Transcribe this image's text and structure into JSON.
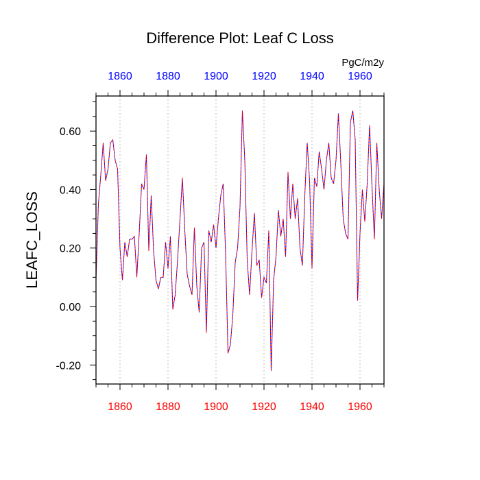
{
  "chart_data": {
    "type": "line",
    "title": "Difference Plot: Leaf C Loss",
    "ylabel": "LEAFC_LOSS",
    "units": "PgC/m2y",
    "xlim": [
      1850,
      1970
    ],
    "ylim": [
      -0.265,
      0.72
    ],
    "x_ticks": [
      1860,
      1880,
      1900,
      1920,
      1940,
      1960
    ],
    "x_tick_labels": [
      "1860",
      "1880",
      "1900",
      "1920",
      "1940",
      "1960"
    ],
    "y_ticks": [
      -0.2,
      0.0,
      0.2,
      0.4,
      0.6
    ],
    "y_tick_labels": [
      "-0.20",
      "0.00",
      "0.20",
      "0.40",
      "0.60"
    ],
    "grid": "vertical dotted at major x ticks",
    "colors": {
      "series_a": "#0000ff",
      "series_b": "#ff0000",
      "bottom_labels": "#ff0000",
      "top_labels": "#0000ff",
      "grid": "#bbbbbb"
    },
    "series": [
      {
        "name": "difference",
        "style": "dashed blue/red overlay",
        "x": [
          1850,
          1851,
          1852,
          1853,
          1854,
          1855,
          1856,
          1857,
          1858,
          1859,
          1860,
          1861,
          1862,
          1863,
          1864,
          1865,
          1866,
          1867,
          1868,
          1869,
          1870,
          1871,
          1872,
          1873,
          1874,
          1875,
          1876,
          1877,
          1878,
          1879,
          1880,
          1881,
          1882,
          1883,
          1884,
          1885,
          1886,
          1887,
          1888,
          1889,
          1890,
          1891,
          1892,
          1893,
          1894,
          1895,
          1896,
          1897,
          1898,
          1899,
          1900,
          1901,
          1902,
          1903,
          1904,
          1905,
          1906,
          1907,
          1908,
          1909,
          1910,
          1911,
          1912,
          1913,
          1914,
          1915,
          1916,
          1917,
          1918,
          1919,
          1920,
          1921,
          1922,
          1923,
          1924,
          1925,
          1926,
          1927,
          1928,
          1929,
          1930,
          1931,
          1932,
          1933,
          1934,
          1935,
          1936,
          1937,
          1938,
          1939,
          1940,
          1941,
          1942,
          1943,
          1944,
          1945,
          1946,
          1947,
          1948,
          1949,
          1950,
          1951,
          1952,
          1953,
          1954,
          1955,
          1956,
          1957,
          1958,
          1959,
          1960,
          1961,
          1962,
          1963,
          1964,
          1965,
          1966,
          1967,
          1968,
          1969,
          1970
        ],
        "values": [
          0.09,
          0.35,
          0.45,
          0.56,
          0.43,
          0.47,
          0.56,
          0.57,
          0.5,
          0.47,
          0.2,
          0.09,
          0.22,
          0.17,
          0.23,
          0.23,
          0.24,
          0.1,
          0.25,
          0.42,
          0.4,
          0.52,
          0.19,
          0.38,
          0.19,
          0.09,
          0.06,
          0.1,
          0.1,
          0.22,
          0.13,
          0.24,
          -0.01,
          0.04,
          0.16,
          0.3,
          0.44,
          0.26,
          0.11,
          0.07,
          0.04,
          0.27,
          0.07,
          -0.02,
          0.2,
          0.22,
          -0.09,
          0.26,
          0.22,
          0.28,
          0.2,
          0.3,
          0.38,
          0.42,
          0.18,
          -0.16,
          -0.13,
          -0.03,
          0.15,
          0.2,
          0.34,
          0.67,
          0.5,
          0.16,
          0.04,
          0.19,
          0.32,
          0.14,
          0.16,
          0.03,
          0.1,
          0.08,
          0.26,
          -0.22,
          0.09,
          0.17,
          0.33,
          0.24,
          0.3,
          0.17,
          0.46,
          0.3,
          0.42,
          0.3,
          0.37,
          0.2,
          0.14,
          0.38,
          0.56,
          0.43,
          0.13,
          0.44,
          0.41,
          0.53,
          0.47,
          0.4,
          0.5,
          0.56,
          0.44,
          0.42,
          0.5,
          0.66,
          0.49,
          0.3,
          0.25,
          0.23,
          0.63,
          0.67,
          0.57,
          0.02,
          0.25,
          0.4,
          0.29,
          0.42,
          0.62,
          0.41,
          0.23,
          0.56,
          0.4,
          0.3,
          0.42
        ]
      }
    ]
  }
}
